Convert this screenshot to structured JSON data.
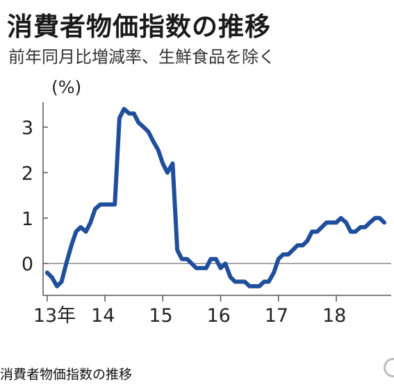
{
  "chart_data": {
    "type": "line",
    "title": "消費者物価指数の推移",
    "subtitle": "前年同月比増減率、生鮮食品を除く",
    "ylabel": "(%)",
    "xlabel": "",
    "ylim": [
      -0.7,
      3.55
    ],
    "yticks": [
      0,
      1,
      2,
      3
    ],
    "xticks": [
      {
        "label": "13年",
        "x": 2013.0
      },
      {
        "label": "14",
        "x": 2014.0
      },
      {
        "label": "15",
        "x": 2015.0
      },
      {
        "label": "16",
        "x": 2016.0
      },
      {
        "label": "17",
        "x": 2017.0
      },
      {
        "label": "18",
        "x": 2018.0
      }
    ],
    "xlim": [
      2012.93,
      2018.95
    ],
    "line_color": "#1f4e9c",
    "grid": false,
    "series": [
      {
        "x": [
          2013.0,
          2013.08,
          2013.17,
          2013.25,
          2013.33,
          2013.42,
          2013.5,
          2013.58,
          2013.67,
          2013.75,
          2013.83,
          2013.92,
          2014.0,
          2014.08,
          2014.17,
          2014.25,
          2014.33,
          2014.42,
          2014.5,
          2014.58,
          2014.67,
          2014.75,
          2014.83,
          2014.92,
          2015.0,
          2015.08,
          2015.17,
          2015.25,
          2015.33,
          2015.42,
          2015.5,
          2015.58,
          2015.67,
          2015.75,
          2015.83,
          2015.92,
          2016.0,
          2016.08,
          2016.17,
          2016.25,
          2016.33,
          2016.42,
          2016.5,
          2016.58,
          2016.67,
          2016.75,
          2016.83,
          2016.92,
          2017.0,
          2017.08,
          2017.17,
          2017.25,
          2017.33,
          2017.42,
          2017.5,
          2017.58,
          2017.67,
          2017.75,
          2017.83,
          2017.92,
          2018.0,
          2018.08,
          2018.17,
          2018.25,
          2018.33,
          2018.42,
          2018.5,
          2018.58,
          2018.67,
          2018.75,
          2018.83
        ],
        "values": [
          -0.2,
          -0.3,
          -0.5,
          -0.4,
          0.0,
          0.4,
          0.7,
          0.8,
          0.7,
          0.9,
          1.2,
          1.3,
          1.3,
          1.3,
          1.3,
          3.2,
          3.4,
          3.3,
          3.3,
          3.1,
          3.0,
          2.9,
          2.7,
          2.5,
          2.2,
          2.0,
          2.2,
          0.3,
          0.1,
          0.1,
          0.0,
          -0.1,
          -0.1,
          -0.1,
          0.1,
          0.1,
          -0.1,
          0.0,
          -0.3,
          -0.4,
          -0.4,
          -0.4,
          -0.5,
          -0.5,
          -0.5,
          -0.4,
          -0.4,
          -0.2,
          0.1,
          0.2,
          0.2,
          0.3,
          0.4,
          0.4,
          0.5,
          0.7,
          0.7,
          0.8,
          0.9,
          0.9,
          0.9,
          1.0,
          0.9,
          0.7,
          0.7,
          0.8,
          0.8,
          0.9,
          1.0,
          1.0,
          0.9
        ]
      }
    ]
  },
  "caption": "消費者物価指数の推移"
}
